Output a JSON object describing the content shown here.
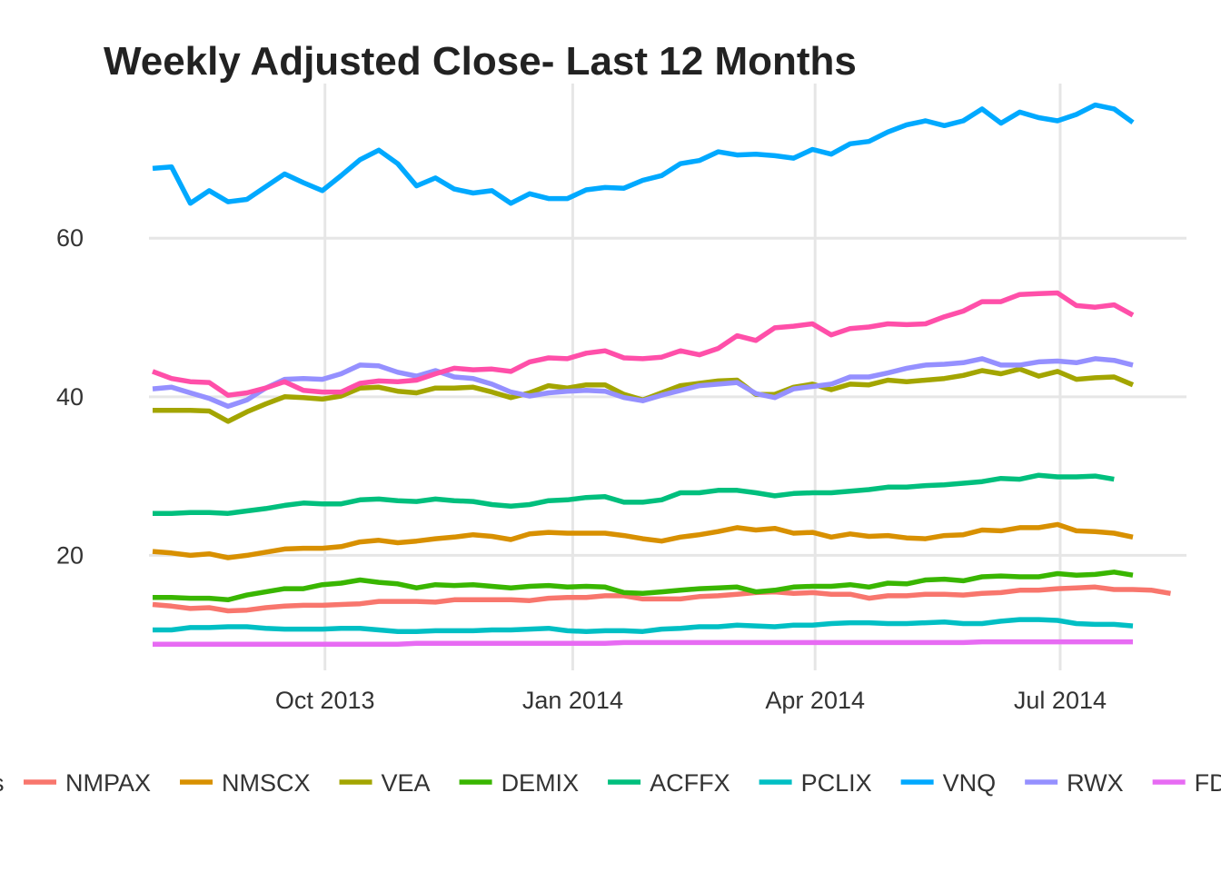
{
  "chart_data": {
    "type": "line",
    "title": "Weekly Adjusted Close- Last 12 Months",
    "xlabel": "",
    "ylabel": "",
    "x_start": "2013-07-29",
    "x_step_days": 7,
    "x_ticks": [
      {
        "date": "2013-10-01",
        "label": "Oct 2013"
      },
      {
        "date": "2014-01-01",
        "label": "Jan 2014"
      },
      {
        "date": "2014-04-01",
        "label": "Apr 2014"
      },
      {
        "date": "2014-07-01",
        "label": "Jul 2014"
      }
    ],
    "y_ticks": [
      20,
      40,
      60
    ],
    "ylim": [
      5.5,
      79.5
    ],
    "grid": true,
    "legend_position": "bottom",
    "legend_title": "s",
    "series": [
      {
        "name": "NMPAX",
        "color": "#F8766D",
        "values": [
          13.8,
          13.6,
          13.3,
          13.4,
          13.0,
          13.1,
          13.4,
          13.6,
          13.7,
          13.7,
          13.8,
          13.9,
          14.2,
          14.2,
          14.2,
          14.1,
          14.4,
          14.4,
          14.4,
          14.4,
          14.3,
          14.6,
          14.7,
          14.7,
          14.9,
          14.9,
          14.5,
          14.5,
          14.5,
          14.8,
          14.9,
          15.1,
          15.3,
          15.4,
          15.2,
          15.3,
          15.1,
          15.1,
          14.6,
          14.9,
          14.9,
          15.1,
          15.1,
          15.0,
          15.2,
          15.3,
          15.6,
          15.6,
          15.8,
          15.9,
          16.0,
          15.7,
          15.7,
          15.6,
          15.2
        ]
      },
      {
        "name": "NMSCX",
        "color": "#D89000",
        "values": [
          20.5,
          20.3,
          20.0,
          20.2,
          19.7,
          20.0,
          20.4,
          20.8,
          20.9,
          20.9,
          21.1,
          21.7,
          21.9,
          21.6,
          21.8,
          22.1,
          22.3,
          22.6,
          22.4,
          22.0,
          22.7,
          22.9,
          22.8,
          22.8,
          22.8,
          22.5,
          22.1,
          21.8,
          22.3,
          22.6,
          23.0,
          23.5,
          23.2,
          23.4,
          22.8,
          22.9,
          22.3,
          22.7,
          22.4,
          22.5,
          22.2,
          22.1,
          22.5,
          22.6,
          23.2,
          23.1,
          23.5,
          23.5,
          23.9,
          23.1,
          23.0,
          22.8,
          22.3
        ]
      },
      {
        "name": "VEA",
        "color": "#A3A500",
        "values": [
          38.3,
          38.3,
          38.3,
          38.2,
          36.9,
          38.1,
          39.1,
          40.0,
          39.9,
          39.7,
          40.1,
          41.1,
          41.2,
          40.7,
          40.5,
          41.1,
          41.1,
          41.2,
          40.6,
          39.9,
          40.5,
          41.4,
          41.1,
          41.5,
          41.5,
          40.3,
          39.6,
          40.5,
          41.4,
          41.7,
          42.0,
          42.1,
          40.3,
          40.3,
          41.2,
          41.6,
          40.9,
          41.6,
          41.5,
          42.1,
          41.9,
          42.1,
          42.3,
          42.7,
          43.3,
          42.9,
          43.5,
          42.6,
          43.2,
          42.2,
          42.4,
          42.5,
          41.5
        ]
      },
      {
        "name": "DEMIX",
        "color": "#39B600",
        "values": [
          14.7,
          14.7,
          14.6,
          14.6,
          14.4,
          15.0,
          15.4,
          15.8,
          15.8,
          16.3,
          16.5,
          16.9,
          16.6,
          16.4,
          15.9,
          16.3,
          16.2,
          16.3,
          16.1,
          15.9,
          16.1,
          16.2,
          16.0,
          16.1,
          16.0,
          15.3,
          15.2,
          15.4,
          15.6,
          15.8,
          15.9,
          16.0,
          15.4,
          15.6,
          16.0,
          16.1,
          16.1,
          16.3,
          16.0,
          16.5,
          16.4,
          16.9,
          17.0,
          16.8,
          17.3,
          17.4,
          17.3,
          17.3,
          17.7,
          17.5,
          17.6,
          17.9,
          17.5
        ]
      },
      {
        "name": "ACFFX",
        "color": "#00BF7D",
        "values": [
          25.3,
          25.3,
          25.4,
          25.4,
          25.3,
          25.6,
          25.9,
          26.3,
          26.6,
          26.5,
          26.5,
          27.0,
          27.1,
          26.9,
          26.8,
          27.1,
          26.9,
          26.8,
          26.4,
          26.2,
          26.4,
          26.9,
          27.0,
          27.3,
          27.4,
          26.7,
          26.7,
          27.0,
          27.9,
          27.9,
          28.2,
          28.2,
          27.9,
          27.5,
          27.8,
          27.9,
          27.9,
          28.1,
          28.3,
          28.6,
          28.6,
          28.8,
          28.9,
          29.1,
          29.3,
          29.7,
          29.6,
          30.1,
          29.9,
          29.9,
          30.0,
          29.6
        ]
      },
      {
        "name": "PCLIX",
        "color": "#00BFC4",
        "values": [
          10.6,
          10.6,
          10.9,
          10.9,
          11.0,
          11.0,
          10.8,
          10.7,
          10.7,
          10.7,
          10.8,
          10.8,
          10.6,
          10.4,
          10.4,
          10.5,
          10.5,
          10.5,
          10.6,
          10.6,
          10.7,
          10.8,
          10.5,
          10.4,
          10.5,
          10.5,
          10.4,
          10.7,
          10.8,
          11.0,
          11.0,
          11.2,
          11.1,
          11.0,
          11.2,
          11.2,
          11.4,
          11.5,
          11.5,
          11.4,
          11.4,
          11.5,
          11.6,
          11.4,
          11.4,
          11.7,
          11.9,
          11.9,
          11.8,
          11.4,
          11.3,
          11.3,
          11.1
        ]
      },
      {
        "name": "VNQ",
        "color": "#00A9FF",
        "values": [
          68.8,
          69.0,
          64.4,
          66.0,
          64.6,
          64.9,
          66.5,
          68.1,
          67.0,
          66.0,
          67.9,
          69.9,
          71.1,
          69.4,
          66.6,
          67.6,
          66.2,
          65.7,
          66.0,
          64.4,
          65.6,
          65.0,
          65.0,
          66.1,
          66.4,
          66.3,
          67.3,
          67.9,
          69.4,
          69.8,
          70.9,
          70.5,
          70.6,
          70.4,
          70.1,
          71.2,
          70.6,
          71.9,
          72.2,
          73.4,
          74.3,
          74.8,
          74.2,
          74.8,
          76.3,
          74.5,
          75.9,
          75.2,
          74.8,
          75.6,
          76.8,
          76.3,
          74.6
        ]
      },
      {
        "name": "RWX",
        "color": "#9590FF",
        "values": [
          41.0,
          41.2,
          40.5,
          39.8,
          38.8,
          39.6,
          41.1,
          42.2,
          42.3,
          42.2,
          42.9,
          44.0,
          43.9,
          43.1,
          42.6,
          43.3,
          42.5,
          42.3,
          41.6,
          40.6,
          40.1,
          40.5,
          40.7,
          40.8,
          40.7,
          39.9,
          39.5,
          40.2,
          40.8,
          41.4,
          41.6,
          41.8,
          40.4,
          39.9,
          41.0,
          41.3,
          41.6,
          42.5,
          42.5,
          43.0,
          43.6,
          44.0,
          44.1,
          44.3,
          44.8,
          44.0,
          44.0,
          44.4,
          44.5,
          44.3,
          44.8,
          44.6,
          44.0
        ]
      },
      {
        "name": "FDAA",
        "color": "#E76BF3",
        "values": [
          8.8,
          8.8,
          8.8,
          8.8,
          8.8,
          8.8,
          8.8,
          8.8,
          8.8,
          8.8,
          8.8,
          8.8,
          8.8,
          8.8,
          8.9,
          8.9,
          8.9,
          8.9,
          8.9,
          8.9,
          8.9,
          8.9,
          8.9,
          8.9,
          8.9,
          9.0,
          9.0,
          9.0,
          9.0,
          9.0,
          9.0,
          9.0,
          9.0,
          9.0,
          9.0,
          9.0,
          9.0,
          9.0,
          9.0,
          9.0,
          9.0,
          9.0,
          9.0,
          9.0,
          9.1,
          9.1,
          9.1,
          9.1,
          9.1,
          9.1,
          9.1,
          9.1,
          9.1
        ]
      },
      {
        "name": "",
        "color": "#FF4FA9",
        "values": [
          43.2,
          42.3,
          41.9,
          41.8,
          40.2,
          40.5,
          41.1,
          41.9,
          40.8,
          40.6,
          40.6,
          41.7,
          42.0,
          41.9,
          42.1,
          42.9,
          43.6,
          43.4,
          43.5,
          43.2,
          44.4,
          44.9,
          44.8,
          45.5,
          45.8,
          44.9,
          44.8,
          45.0,
          45.8,
          45.3,
          46.1,
          47.7,
          47.1,
          48.7,
          48.9,
          49.2,
          47.8,
          48.6,
          48.8,
          49.2,
          49.1,
          49.2,
          50.1,
          50.8,
          52.0,
          52.0,
          52.9,
          53.0,
          53.1,
          51.5,
          51.3,
          51.6,
          50.3
        ]
      }
    ]
  }
}
